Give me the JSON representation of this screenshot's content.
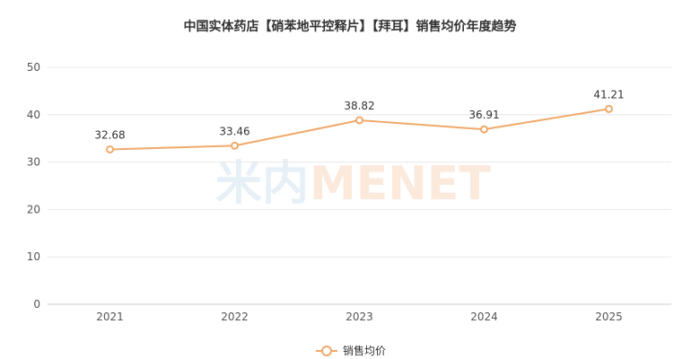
{
  "chart_data": {
    "type": "line",
    "title": "中国实体药店【硝苯地平控释片】【拜耳】销售均价年度趋势",
    "categories": [
      "2021",
      "2022",
      "2023",
      "2024",
      "2025"
    ],
    "series": [
      {
        "name": "销售均价",
        "values": [
          32.68,
          33.46,
          38.82,
          36.91,
          41.21
        ]
      }
    ],
    "ylim": [
      0,
      50
    ],
    "yticks": [
      0,
      10,
      20,
      30,
      40,
      50
    ],
    "xlabel": "",
    "ylabel": "",
    "grid": true,
    "legend": "bottom-center",
    "colors": {
      "line": "#F0A96B",
      "marker_fill": "#ffffff",
      "grid": "#e8e8e8",
      "axis": "#cccccc"
    }
  },
  "watermark": {
    "text": "米内MENET"
  }
}
